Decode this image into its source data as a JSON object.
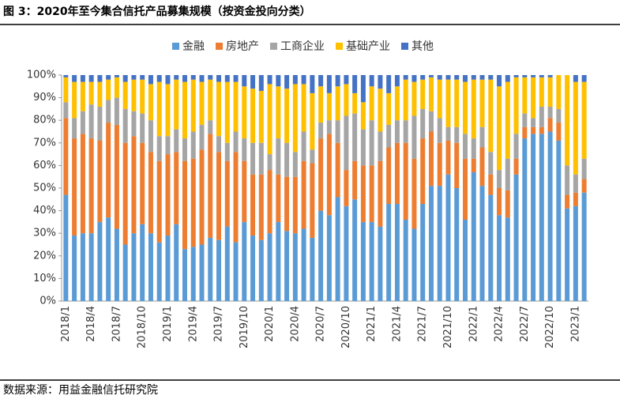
{
  "chart_data": {
    "type": "stacked_bar",
    "title": "图 3：2020年至今集合信托产品募集规模（按资金投向分类）",
    "source": "数据来源：用益金融信托研究院",
    "categories": [
      "2018/1",
      null,
      null,
      "2018/4",
      null,
      null,
      "2018/7",
      null,
      null,
      "2018/10",
      null,
      null,
      "2019/1",
      null,
      null,
      "2019/4",
      null,
      null,
      "2019/7",
      null,
      null,
      "2019/10",
      null,
      null,
      "2020/1",
      null,
      null,
      "2020/4",
      null,
      null,
      "2020/7",
      null,
      null,
      "2020/10",
      null,
      null,
      "2021/1",
      null,
      null,
      "2021/4",
      null,
      null,
      "2021/7",
      null,
      null,
      "2021/10",
      null,
      null,
      "2022/1",
      null,
      null,
      "2022/4",
      null,
      null,
      "2022/7",
      null,
      null,
      "2022/10",
      null,
      null,
      "2023/1",
      null
    ],
    "series": [
      {
        "name": "金融",
        "color": "#5b9bd5",
        "values": [
          47,
          29,
          30,
          30,
          35,
          37,
          32,
          25,
          30,
          34,
          30,
          26,
          29,
          34,
          23,
          24,
          25,
          28,
          27,
          33,
          26,
          35,
          29,
          27,
          30,
          35,
          31,
          30,
          32,
          28,
          40,
          38,
          46,
          42,
          45,
          35,
          35,
          33,
          43,
          43,
          36,
          32,
          43,
          51,
          51,
          56,
          50,
          36,
          57,
          51,
          47,
          38,
          37,
          56,
          72,
          74,
          74,
          75,
          71,
          41,
          42,
          48
        ]
      },
      {
        "name": "房地产",
        "color": "#ed7d31",
        "values": [
          34,
          43,
          44,
          42,
          36,
          42,
          46,
          45,
          43,
          36,
          36,
          36,
          36,
          32,
          39,
          39,
          42,
          46,
          39,
          29,
          40,
          27,
          27,
          29,
          28,
          21,
          24,
          25,
          30,
          33,
          32,
          36,
          24,
          16,
          17,
          25,
          25,
          29,
          25,
          27,
          34,
          31,
          29,
          24,
          19,
          15,
          20,
          27,
          6,
          17,
          9,
          12,
          12,
          7,
          5,
          3,
          3,
          6,
          8,
          6,
          6,
          6
        ]
      },
      {
        "name": "工商企业",
        "color": "#a5a5a5",
        "values": [
          7,
          9,
          10,
          15,
          15,
          10,
          12,
          15,
          11,
          13,
          14,
          11,
          8,
          10,
          10,
          12,
          11,
          6,
          7,
          8,
          9,
          10,
          14,
          14,
          7,
          16,
          15,
          11,
          13,
          6,
          7,
          6,
          10,
          24,
          21,
          16,
          20,
          13,
          10,
          10,
          10,
          19,
          13,
          9,
          11,
          6,
          7,
          11,
          9,
          9,
          10,
          8,
          14,
          11,
          6,
          4,
          9,
          5,
          6,
          13,
          8,
          9
        ]
      },
      {
        "name": "基础产业",
        "color": "#ffc000",
        "values": [
          11,
          16,
          13,
          10,
          11,
          9,
          9,
          12,
          14,
          15,
          16,
          24,
          23,
          22,
          25,
          23,
          19,
          18,
          24,
          27,
          22,
          23,
          24,
          23,
          31,
          23,
          24,
          30,
          21,
          25,
          16,
          12,
          15,
          14,
          9,
          12,
          15,
          19,
          14,
          15,
          18,
          15,
          13,
          15,
          17,
          21,
          21,
          23,
          26,
          21,
          32,
          37,
          34,
          25,
          16,
          18,
          13,
          13,
          15,
          40,
          41,
          34
        ]
      },
      {
        "name": "其他",
        "color": "#4472c4",
        "values": [
          1,
          3,
          3,
          3,
          3,
          2,
          1,
          3,
          2,
          2,
          4,
          3,
          4,
          2,
          3,
          2,
          3,
          2,
          3,
          3,
          3,
          5,
          6,
          7,
          4,
          5,
          6,
          4,
          4,
          8,
          5,
          8,
          5,
          4,
          8,
          12,
          5,
          6,
          8,
          5,
          2,
          3,
          2,
          1,
          2,
          2,
          2,
          3,
          2,
          2,
          2,
          5,
          3,
          1,
          1,
          1,
          1,
          1,
          0,
          0,
          3,
          3
        ]
      }
    ],
    "ylim": [
      0,
      100
    ],
    "yticks": [
      {
        "value": 0,
        "label": "0%"
      },
      {
        "value": 10,
        "label": "10%"
      },
      {
        "value": 20,
        "label": "20%"
      },
      {
        "value": 30,
        "label": "30%"
      },
      {
        "value": 40,
        "label": "40%"
      },
      {
        "value": 50,
        "label": "50%"
      },
      {
        "value": 60,
        "label": "60%"
      },
      {
        "value": 70,
        "label": "70%"
      },
      {
        "value": 80,
        "label": "80%"
      },
      {
        "value": 90,
        "label": "90%"
      },
      {
        "value": 100,
        "label": "100%"
      }
    ],
    "legend": "top"
  }
}
